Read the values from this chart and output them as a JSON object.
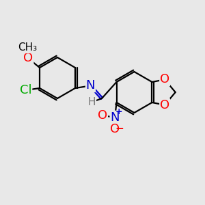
{
  "background_color": "#e8e8e8",
  "bond_color": "#000000",
  "atom_colors": {
    "O": "#ff0000",
    "N": "#0000cc",
    "Cl": "#00aa00",
    "C": "#000000",
    "H": "#777777"
  },
  "font_size_atoms": 13,
  "font_size_small": 10,
  "figsize": [
    3.0,
    3.0
  ],
  "dpi": 100,
  "lw": 1.6
}
